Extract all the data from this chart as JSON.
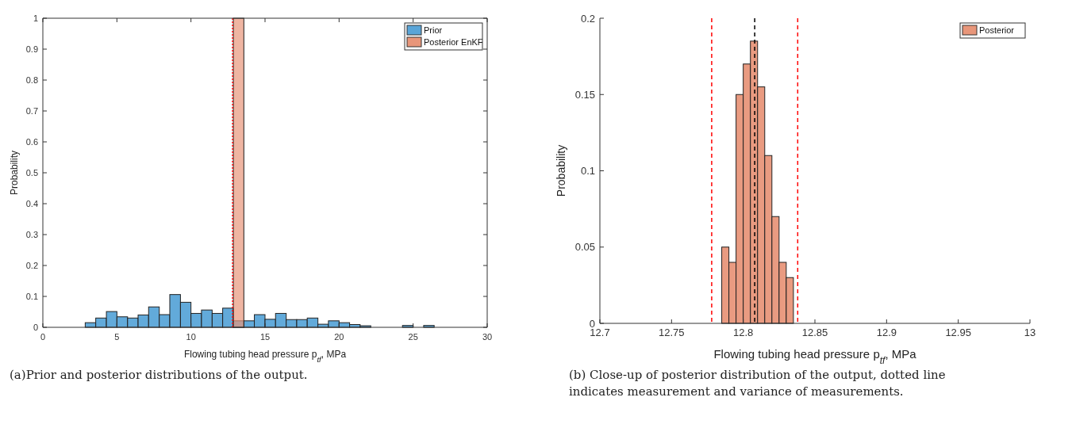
{
  "chart_data": [
    {
      "type": "histogram",
      "xlabel": "Flowing tubing head pressure p$_{tf}$, MPa",
      "ylabel": "Probability",
      "xlim": [
        0,
        30
      ],
      "ylim": [
        0,
        1
      ],
      "xticks": [
        0,
        5,
        10,
        15,
        20,
        25,
        30
      ],
      "yticks": [
        0,
        0.1,
        0.2,
        0.3,
        0.4,
        0.5,
        0.6,
        0.7,
        0.8,
        0.9,
        1
      ],
      "legend": "top right",
      "grid": false,
      "bins": [
        2.86,
        3.57,
        4.29,
        5.0,
        5.72,
        6.43,
        7.14,
        7.86,
        8.57,
        9.29,
        10.0,
        10.71,
        11.43,
        12.14,
        12.86,
        13.57,
        14.28,
        15.0,
        15.71,
        16.43,
        17.14,
        17.85,
        18.57,
        19.28,
        20.0,
        20.71,
        21.42,
        22.14,
        22.85,
        23.57,
        24.28,
        25.0,
        25.71,
        26.42
      ],
      "series": [
        {
          "name": "Prior",
          "color": "#5aa5d8",
          "values": [
            0.015,
            0.03,
            0.051,
            0.034,
            0.03,
            0.04,
            0.066,
            0.041,
            0.106,
            0.081,
            0.045,
            0.056,
            0.045,
            0.062,
            0.021,
            0.021,
            0.041,
            0.026,
            0.045,
            0.025,
            0.025,
            0.03,
            0.01,
            0.021,
            0.015,
            0.009,
            0.005,
            0,
            0,
            0,
            0.006,
            0,
            0.006
          ]
        },
        {
          "name": "Posterior EnKF",
          "color": "#e8967a",
          "values": [
            0,
            0,
            0,
            0,
            0,
            0,
            0,
            0,
            0,
            0,
            0,
            0,
            0,
            0,
            1,
            0,
            0,
            0,
            0,
            0,
            0,
            0,
            0,
            0,
            0,
            0,
            0,
            0,
            0,
            0,
            0,
            0,
            0
          ]
        }
      ],
      "ref_lines": [
        {
          "axis": "x",
          "value": 12.81,
          "color": "#ff0000",
          "line_style": "dotted"
        }
      ],
      "annotations": [
        "(a)Prior and posterior distributions of the output."
      ]
    },
    {
      "type": "histogram",
      "xlabel": "Flowing tubing head pressure p$_{tf}$, MPa",
      "ylabel": "Probability",
      "xlim": [
        12.7,
        13
      ],
      "ylim": [
        0,
        0.2
      ],
      "xticks": [
        12.7,
        12.75,
        12.8,
        12.85,
        12.9,
        12.95,
        13
      ],
      "yticks": [
        0,
        0.05,
        0.1,
        0.15,
        0.2
      ],
      "legend": "top right",
      "grid": false,
      "bins": [
        12.785,
        12.79,
        12.795,
        12.8,
        12.805,
        12.81,
        12.815,
        12.82,
        12.825,
        12.83,
        12.835
      ],
      "series": [
        {
          "name": "Posterior",
          "color": "#e8967a",
          "values": [
            0.05,
            0.04,
            0.15,
            0.17,
            0.185,
            0.155,
            0.11,
            0.07,
            0.04,
            0.03
          ]
        }
      ],
      "ref_lines": [
        {
          "axis": "x",
          "value": 12.778,
          "color": "#ff0000",
          "line_style": "dashed"
        },
        {
          "axis": "x",
          "value": 12.808,
          "color": "#000000",
          "line_style": "dashed"
        },
        {
          "axis": "x",
          "value": 12.838,
          "color": "#ff0000",
          "line_style": "dashed"
        }
      ],
      "annotations": [
        "(b) Close-up of posterior distribution of the output, dotted line indicates measurement and variance of measurements."
      ]
    }
  ]
}
